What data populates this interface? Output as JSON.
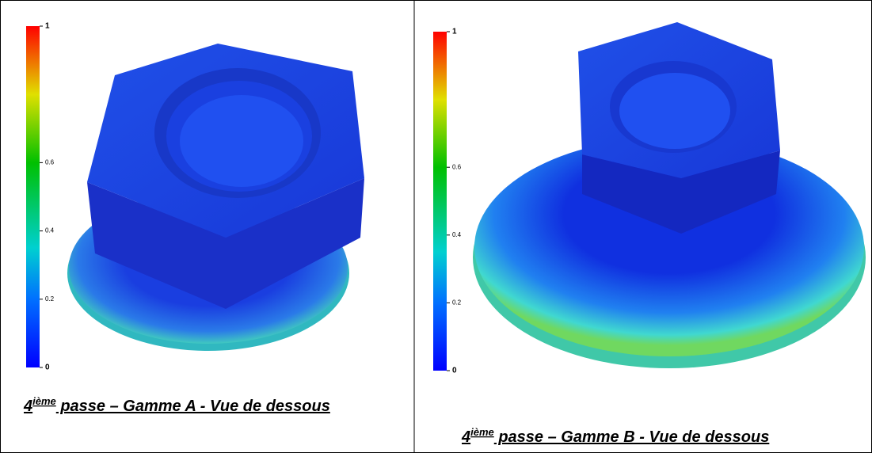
{
  "panels": [
    {
      "colorbar": {
        "ticks": [
          1,
          0.6,
          0.4,
          0.2,
          0
        ]
      },
      "caption": {
        "number": "4",
        "superscript": "ième",
        "text": " passe – Gamme A - Vue de dessous"
      }
    },
    {
      "colorbar": {
        "ticks": [
          1,
          0.6,
          0.4,
          0.2,
          0
        ]
      },
      "caption": {
        "number": "4",
        "superscript": "ième",
        "text": " passe – Gamme B - Vue de dessous"
      }
    }
  ]
}
